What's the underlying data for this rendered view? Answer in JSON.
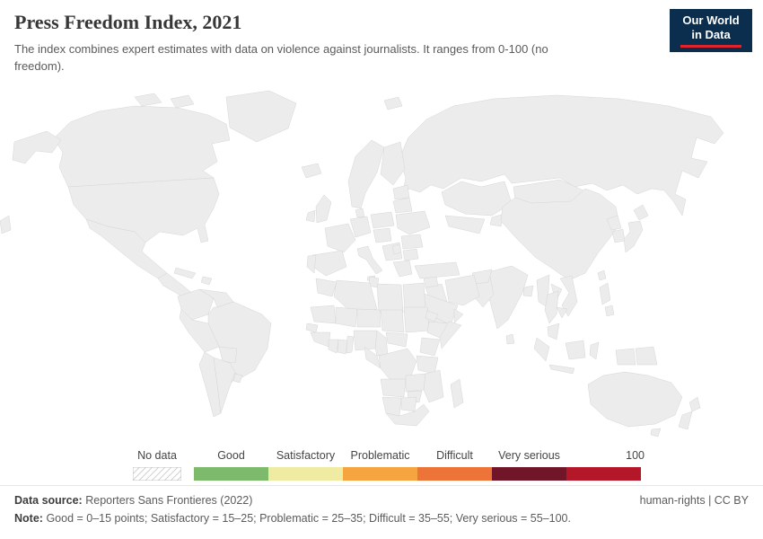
{
  "header": {
    "title": "Press Freedom Index, 2021",
    "subtitle": "The index combines expert estimates with data on violence against journalists. It ranges from 0-100 (no freedom).",
    "logo_line1": "Our World",
    "logo_line2": "in Data"
  },
  "legend": {
    "no_data_label": "No data",
    "max_label": "100",
    "segments": [
      {
        "label": "Good",
        "category": "good"
      },
      {
        "label": "Satisfactory",
        "category": "satisfactory"
      },
      {
        "label": "Problematic",
        "category": "problematic"
      },
      {
        "label": "Difficult",
        "category": "difficult"
      },
      {
        "label": "Very serious",
        "category": "very_serious"
      },
      {
        "label": "",
        "category": "extreme"
      }
    ]
  },
  "footer": {
    "source_label": "Data source:",
    "source_value": "Reporters Sans Frontieres (2022)",
    "note_label": "Note:",
    "note_value": "Good = 0–15 points; Satisfactory = 15–25; Problematic = 25–35; Difficult = 35–55; Very serious = 55–100.",
    "license": "human-rights | CC BY"
  },
  "chart_data": {
    "type": "choropleth_map",
    "title": "Press Freedom Index, 2021",
    "year": 2021,
    "scale_max_label": "100",
    "palette": {
      "no_data": "hatch",
      "good": "#7dba6c",
      "satisfactory": "#f0eba3",
      "problematic": "#f5a43f",
      "difficult": "#ec7438",
      "very_serious": "#701628",
      "extreme": "#b41728"
    },
    "bins": [
      {
        "label": "No data",
        "range": null
      },
      {
        "label": "Good",
        "range": "0–15 points"
      },
      {
        "label": "Satisfactory",
        "range": "15–25"
      },
      {
        "label": "Problematic",
        "range": "25–35"
      },
      {
        "label": "Difficult",
        "range": "35–55"
      },
      {
        "label": "Very serious",
        "range": "55–100"
      }
    ],
    "regions": [
      {
        "id": "greenland",
        "category": "no_data"
      },
      {
        "id": "svalbard",
        "category": "no_data"
      },
      {
        "id": "russia",
        "category": "very_serious"
      },
      {
        "id": "canada",
        "category": "problematic"
      },
      {
        "id": "alaska",
        "category": "problematic"
      },
      {
        "id": "usa",
        "category": "problematic"
      },
      {
        "id": "mexico",
        "category": "very_serious"
      },
      {
        "id": "central_america",
        "category": "difficult"
      },
      {
        "id": "costa_rica",
        "category": "good"
      },
      {
        "id": "cuba",
        "category": "extreme"
      },
      {
        "id": "hispaniola",
        "category": "very_serious"
      },
      {
        "id": "colombia",
        "category": "difficult"
      },
      {
        "id": "venezuela",
        "category": "very_serious"
      },
      {
        "id": "guyana",
        "category": "good"
      },
      {
        "id": "suriname",
        "category": "satisfactory"
      },
      {
        "id": "brazil",
        "category": "very_serious"
      },
      {
        "id": "peru",
        "category": "problematic"
      },
      {
        "id": "bolivia",
        "category": "difficult"
      },
      {
        "id": "paraguay",
        "category": "difficult"
      },
      {
        "id": "chile",
        "category": "difficult"
      },
      {
        "id": "argentina",
        "category": "problematic"
      },
      {
        "id": "uruguay",
        "category": "satisfactory"
      },
      {
        "id": "iceland",
        "category": "satisfactory"
      },
      {
        "id": "ireland",
        "category": "satisfactory"
      },
      {
        "id": "uk",
        "category": "difficult"
      },
      {
        "id": "norway_sweden",
        "category": "satisfactory"
      },
      {
        "id": "finland",
        "category": "satisfactory"
      },
      {
        "id": "denmark",
        "category": "satisfactory"
      },
      {
        "id": "baltics",
        "category": "difficult"
      },
      {
        "id": "germany",
        "category": "satisfactory"
      },
      {
        "id": "poland",
        "category": "problematic"
      },
      {
        "id": "czech_hungary",
        "category": "difficult"
      },
      {
        "id": "france",
        "category": "difficult"
      },
      {
        "id": "iberia",
        "category": "difficult"
      },
      {
        "id": "portugal",
        "category": "satisfactory"
      },
      {
        "id": "italy",
        "category": "difficult"
      },
      {
        "id": "belarus",
        "category": "very_serious"
      },
      {
        "id": "ukraine",
        "category": "difficult"
      },
      {
        "id": "romania",
        "category": "difficult"
      },
      {
        "id": "balkans",
        "category": "difficult"
      },
      {
        "id": "serbia",
        "category": "very_serious"
      },
      {
        "id": "bulgaria",
        "category": "difficult"
      },
      {
        "id": "greece",
        "category": "difficult"
      },
      {
        "id": "turkey",
        "category": "extreme"
      },
      {
        "id": "kazakhstan",
        "category": "extreme"
      },
      {
        "id": "uzbek_turkmen",
        "category": "very_serious"
      },
      {
        "id": "kyrgyz_tajik",
        "category": "extreme"
      },
      {
        "id": "mongolia",
        "category": "difficult"
      },
      {
        "id": "china",
        "category": "extreme"
      },
      {
        "id": "north_korea",
        "category": "very_serious"
      },
      {
        "id": "south_korea",
        "category": "problematic"
      },
      {
        "id": "japan",
        "category": "difficult"
      },
      {
        "id": "taiwan",
        "category": "difficult"
      },
      {
        "id": "india",
        "category": "very_serious"
      },
      {
        "id": "sri_lanka",
        "category": "difficult"
      },
      {
        "id": "bangladesh",
        "category": "extreme"
      },
      {
        "id": "pakistan",
        "category": "extreme"
      },
      {
        "id": "afghanistan",
        "category": "very_serious"
      },
      {
        "id": "iran",
        "category": "extreme"
      },
      {
        "id": "iraq",
        "category": "very_serious"
      },
      {
        "id": "syria",
        "category": "extreme"
      },
      {
        "id": "saudi_arabia",
        "category": "extreme"
      },
      {
        "id": "yemen",
        "category": "very_serious"
      },
      {
        "id": "oman",
        "category": "difficult"
      },
      {
        "id": "egypt",
        "category": "extreme"
      },
      {
        "id": "libya",
        "category": "very_serious"
      },
      {
        "id": "tunisia",
        "category": "difficult"
      },
      {
        "id": "algeria",
        "category": "extreme"
      },
      {
        "id": "morocco",
        "category": "extreme"
      },
      {
        "id": "mauritania",
        "category": "difficult"
      },
      {
        "id": "mali",
        "category": "difficult"
      },
      {
        "id": "niger",
        "category": "difficult"
      },
      {
        "id": "chad",
        "category": "very_serious"
      },
      {
        "id": "sudan",
        "category": "very_serious"
      },
      {
        "id": "eritrea",
        "category": "extreme"
      },
      {
        "id": "ethiopia",
        "category": "difficult"
      },
      {
        "id": "somalia",
        "category": "very_serious"
      },
      {
        "id": "senegal",
        "category": "difficult"
      },
      {
        "id": "guinea",
        "category": "difficult"
      },
      {
        "id": "ivory_coast",
        "category": "difficult"
      },
      {
        "id": "ghana",
        "category": "good"
      },
      {
        "id": "togo_benin",
        "category": "difficult"
      },
      {
        "id": "nigeria",
        "category": "difficult"
      },
      {
        "id": "cameroon",
        "category": "very_serious"
      },
      {
        "id": "car",
        "category": "difficult"
      },
      {
        "id": "drc",
        "category": "very_serious"
      },
      {
        "id": "congo_gabon",
        "category": "difficult"
      },
      {
        "id": "kenya",
        "category": "difficult"
      },
      {
        "id": "tanzania",
        "category": "difficult"
      },
      {
        "id": "angola",
        "category": "difficult"
      },
      {
        "id": "zambia",
        "category": "difficult"
      },
      {
        "id": "mozambique",
        "category": "problematic"
      },
      {
        "id": "zimbabwe",
        "category": "very_serious"
      },
      {
        "id": "namibia",
        "category": "satisfactory"
      },
      {
        "id": "botswana",
        "category": "satisfactory"
      },
      {
        "id": "south_africa",
        "category": "problematic"
      },
      {
        "id": "madagascar",
        "category": "difficult"
      },
      {
        "id": "myanmar",
        "category": "very_serious"
      },
      {
        "id": "thailand",
        "category": "extreme"
      },
      {
        "id": "laos",
        "category": "very_serious"
      },
      {
        "id": "vietnam",
        "category": "very_serious"
      },
      {
        "id": "cambodia",
        "category": "difficult"
      },
      {
        "id": "malaysia",
        "category": "difficult"
      },
      {
        "id": "philippines",
        "category": "very_serious"
      },
      {
        "id": "indonesia",
        "category": "difficult"
      },
      {
        "id": "png",
        "category": "very_serious"
      },
      {
        "id": "australia",
        "category": "problematic"
      },
      {
        "id": "new_zealand",
        "category": "satisfactory"
      }
    ]
  }
}
